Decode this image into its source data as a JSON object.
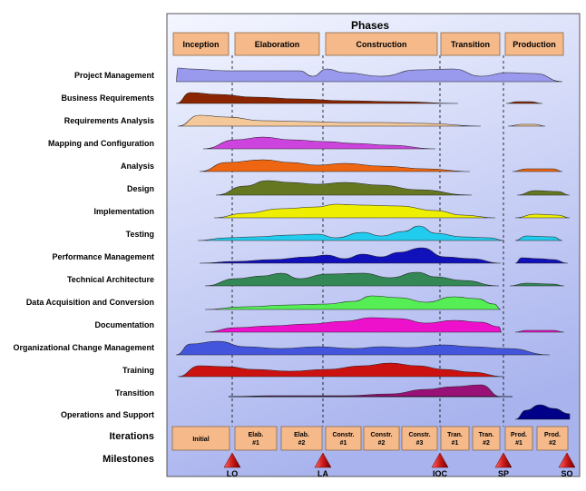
{
  "title": "Phases",
  "phases": [
    {
      "label": "Inception"
    },
    {
      "label": "Elaboration"
    },
    {
      "label": "Construction"
    },
    {
      "label": "Transition"
    },
    {
      "label": "Production"
    }
  ],
  "disciplines": [
    {
      "label": "Project Management",
      "color": "#9999ee"
    },
    {
      "label": "Business Requirements",
      "color": "#8b2500"
    },
    {
      "label": "Requirements Analysis",
      "color": "#f5c89a"
    },
    {
      "label": "Mapping and Configuration",
      "color": "#cc44dd"
    },
    {
      "label": "Analysis",
      "color": "#ee6611"
    },
    {
      "label": "Design",
      "color": "#667722"
    },
    {
      "label": "Implementation",
      "color": "#eeee00"
    },
    {
      "label": "Testing",
      "color": "#22ccee"
    },
    {
      "label": "Performance Management",
      "color": "#1111bb"
    },
    {
      "label": "Technical Architecture",
      "color": "#338855"
    },
    {
      "label": "Data Acquisition and Conversion",
      "color": "#55ee55"
    },
    {
      "label": "Documentation",
      "color": "#ee11cc"
    },
    {
      "label": "Organizational Change Management",
      "color": "#4455dd"
    },
    {
      "label": "Training",
      "color": "#cc1111"
    },
    {
      "label": "Transition",
      "color": "#991177"
    },
    {
      "label": "Operations and Support",
      "color": "#000088"
    }
  ],
  "iterations_label": "Iterations",
  "milestones_label": "Milestones",
  "iterations": [
    {
      "line1": "Initial",
      "line2": ""
    },
    {
      "line1": "Elab.",
      "line2": "#1"
    },
    {
      "line1": "Elab.",
      "line2": "#2"
    },
    {
      "line1": "Constr.",
      "line2": "#1"
    },
    {
      "line1": "Constr.",
      "line2": "#2"
    },
    {
      "line1": "Constr.",
      "line2": "#3"
    },
    {
      "line1": "Tran.",
      "line2": "#1"
    },
    {
      "line1": "Tran.",
      "line2": "#2"
    },
    {
      "line1": "Prod.",
      "line2": "#1"
    },
    {
      "line1": "Prod.",
      "line2": "#2"
    }
  ],
  "milestones": [
    {
      "label": "LO"
    },
    {
      "label": "LA"
    },
    {
      "label": "IOC"
    },
    {
      "label": "SP"
    },
    {
      "label": "SO"
    }
  ],
  "colors": {
    "phase_box": "#f5b98a",
    "panel_top": "#f4f6ff",
    "panel_bottom": "#a9b4ee",
    "milestone": "#cc1a1a"
  }
}
